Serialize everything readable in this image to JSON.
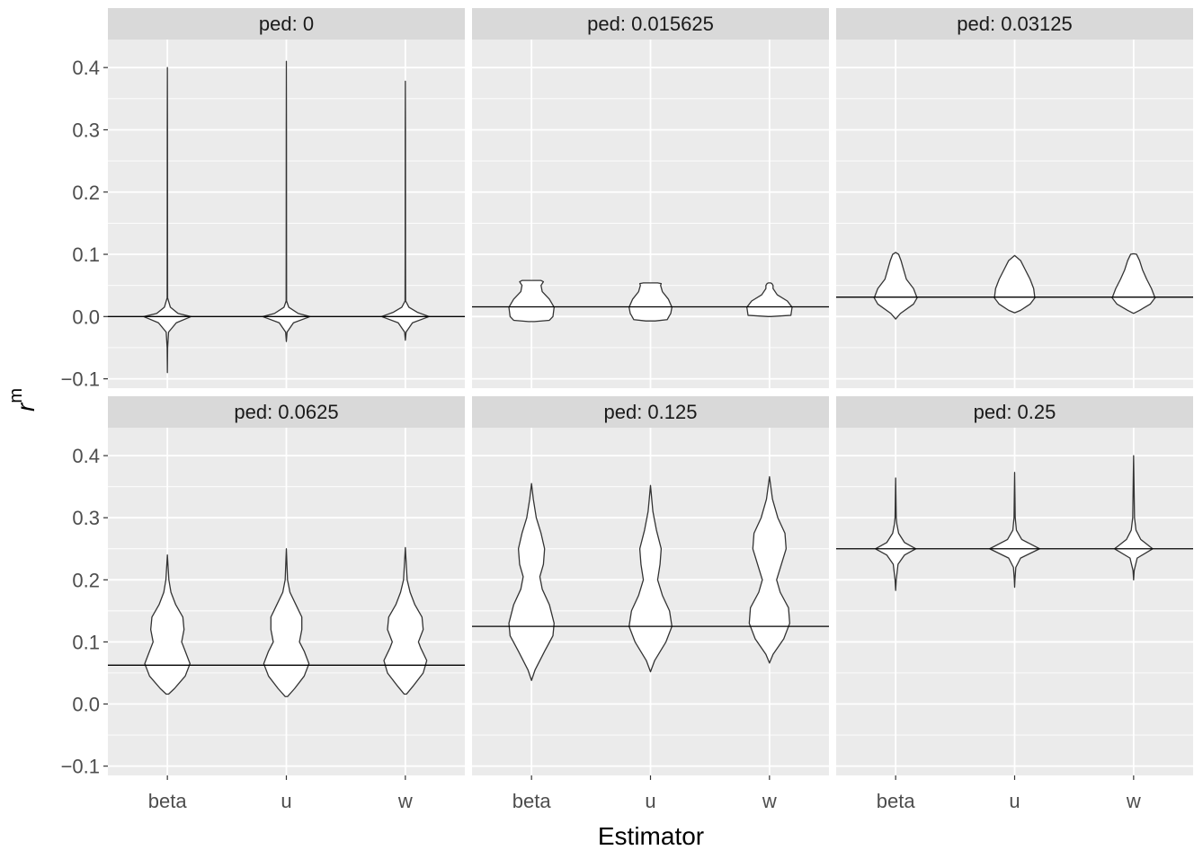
{
  "chart_data": {
    "type": "violin",
    "xlabel": "Estimator",
    "ylabel": "r",
    "ylabel_superscript": "m",
    "categories": [
      "beta",
      "u",
      "w"
    ],
    "ylim": [
      -0.115,
      0.445
    ],
    "yticks": [
      -0.1,
      0.0,
      0.1,
      0.2,
      0.3,
      0.4
    ],
    "ytick_labels": [
      "−0.1",
      "0.0",
      "0.1",
      "0.2",
      "0.3",
      "0.4"
    ],
    "grid": true,
    "facets": [
      {
        "label": "ped: 0",
        "ped": 0,
        "ref_line": 0,
        "violins": [
          {
            "category": "beta",
            "profile": [
              [
                -0.09,
                0
              ],
              [
                -0.05,
                0.004
              ],
              [
                -0.025,
                0.02
              ],
              [
                -0.01,
                0.15
              ],
              [
                0,
                0.4
              ],
              [
                0.005,
                0.18
              ],
              [
                0.015,
                0.05
              ],
              [
                0.03,
                0.004
              ],
              [
                0.1,
                0.003
              ],
              [
                0.3,
                0.002
              ],
              [
                0.4,
                0
              ]
            ]
          },
          {
            "category": "u",
            "profile": [
              [
                -0.04,
                0
              ],
              [
                -0.025,
                0.012
              ],
              [
                -0.01,
                0.12
              ],
              [
                0,
                0.4
              ],
              [
                0.005,
                0.2
              ],
              [
                0.015,
                0.04
              ],
              [
                0.025,
                0.004
              ],
              [
                0.1,
                0.003
              ],
              [
                0.3,
                0.002
              ],
              [
                0.41,
                0
              ]
            ]
          },
          {
            "category": "w",
            "profile": [
              [
                -0.038,
                0
              ],
              [
                -0.025,
                0.012
              ],
              [
                -0.01,
                0.12
              ],
              [
                0,
                0.4
              ],
              [
                0.007,
                0.2
              ],
              [
                0.015,
                0.06
              ],
              [
                0.025,
                0.005
              ],
              [
                0.1,
                0.003
              ],
              [
                0.3,
                0.002
              ],
              [
                0.378,
                0
              ]
            ]
          }
        ]
      },
      {
        "label": "ped: 0.015625",
        "ped": 0.015625,
        "ref_line": 0.015625,
        "violins": [
          {
            "category": "beta",
            "profile": [
              [
                -0.008,
                0.05
              ],
              [
                -0.006,
                0.3
              ],
              [
                0,
                0.36
              ],
              [
                0.015,
                0.38
              ],
              [
                0.028,
                0.3
              ],
              [
                0.04,
                0.18
              ],
              [
                0.05,
                0.16
              ],
              [
                0.056,
                0.2
              ],
              [
                0.058,
                0.16
              ]
            ]
          },
          {
            "category": "u",
            "profile": [
              [
                -0.007,
                0.08
              ],
              [
                -0.005,
                0.28
              ],
              [
                0.005,
                0.34
              ],
              [
                0.015,
                0.36
              ],
              [
                0.028,
                0.3
              ],
              [
                0.04,
                0.2
              ],
              [
                0.05,
                0.17
              ],
              [
                0.053,
                0.18
              ],
              [
                0.054,
                0.12
              ]
            ]
          },
          {
            "category": "w",
            "profile": [
              [
                0,
                0.02
              ],
              [
                0.002,
                0.36
              ],
              [
                0.015,
                0.38
              ],
              [
                0.025,
                0.3
              ],
              [
                0.035,
                0.13
              ],
              [
                0.045,
                0.06
              ],
              [
                0.05,
                0.06
              ],
              [
                0.053,
                0.04
              ],
              [
                0.054,
                0.02
              ]
            ]
          }
        ]
      },
      {
        "label": "ped: 0.03125",
        "ped": 0.03125,
        "ref_line": 0.03125,
        "violins": [
          {
            "category": "beta",
            "profile": [
              [
                -0.004,
                0
              ],
              [
                0.005,
                0.08
              ],
              [
                0.02,
                0.3
              ],
              [
                0.03,
                0.36
              ],
              [
                0.045,
                0.3
              ],
              [
                0.06,
                0.18
              ],
              [
                0.08,
                0.12
              ],
              [
                0.09,
                0.09
              ],
              [
                0.1,
                0.05
              ],
              [
                0.103,
                0
              ]
            ]
          },
          {
            "category": "u",
            "profile": [
              [
                0.006,
                0
              ],
              [
                0.01,
                0.1
              ],
              [
                0.02,
                0.26
              ],
              [
                0.03,
                0.34
              ],
              [
                0.045,
                0.32
              ],
              [
                0.06,
                0.26
              ],
              [
                0.075,
                0.18
              ],
              [
                0.09,
                0.1
              ],
              [
                0.098,
                0
              ]
            ]
          },
          {
            "category": "w",
            "profile": [
              [
                0.005,
                0
              ],
              [
                0.01,
                0.1
              ],
              [
                0.02,
                0.28
              ],
              [
                0.03,
                0.36
              ],
              [
                0.045,
                0.3
              ],
              [
                0.06,
                0.22
              ],
              [
                0.075,
                0.15
              ],
              [
                0.09,
                0.1
              ],
              [
                0.1,
                0.05
              ],
              [
                0.101,
                0
              ]
            ]
          }
        ]
      },
      {
        "label": "ped: 0.0625",
        "ped": 0.0625,
        "ref_line": 0.0625,
        "violins": [
          {
            "category": "beta",
            "profile": [
              [
                0.016,
                0.02
              ],
              [
                0.025,
                0.12
              ],
              [
                0.045,
                0.3
              ],
              [
                0.065,
                0.38
              ],
              [
                0.085,
                0.3
              ],
              [
                0.1,
                0.24
              ],
              [
                0.12,
                0.28
              ],
              [
                0.14,
                0.26
              ],
              [
                0.16,
                0.14
              ],
              [
                0.18,
                0.06
              ],
              [
                0.2,
                0.025
              ],
              [
                0.24,
                0
              ]
            ]
          },
          {
            "category": "u",
            "profile": [
              [
                0.012,
                0.02
              ],
              [
                0.025,
                0.14
              ],
              [
                0.045,
                0.3
              ],
              [
                0.065,
                0.38
              ],
              [
                0.085,
                0.3
              ],
              [
                0.1,
                0.22
              ],
              [
                0.12,
                0.26
              ],
              [
                0.14,
                0.26
              ],
              [
                0.16,
                0.16
              ],
              [
                0.18,
                0.06
              ],
              [
                0.2,
                0.02
              ],
              [
                0.25,
                0
              ]
            ]
          },
          {
            "category": "w",
            "profile": [
              [
                0.016,
                0.02
              ],
              [
                0.03,
                0.14
              ],
              [
                0.05,
                0.3
              ],
              [
                0.07,
                0.36
              ],
              [
                0.09,
                0.26
              ],
              [
                0.1,
                0.22
              ],
              [
                0.12,
                0.3
              ],
              [
                0.14,
                0.28
              ],
              [
                0.16,
                0.16
              ],
              [
                0.18,
                0.08
              ],
              [
                0.2,
                0.03
              ],
              [
                0.252,
                0
              ]
            ]
          }
        ]
      },
      {
        "label": "ped: 0.125",
        "ped": 0.125,
        "ref_line": 0.125,
        "violins": [
          {
            "category": "beta",
            "profile": [
              [
                0.038,
                0
              ],
              [
                0.055,
                0.06
              ],
              [
                0.085,
                0.22
              ],
              [
                0.11,
                0.36
              ],
              [
                0.13,
                0.38
              ],
              [
                0.16,
                0.3
              ],
              [
                0.185,
                0.18
              ],
              [
                0.205,
                0.14
              ],
              [
                0.225,
                0.2
              ],
              [
                0.25,
                0.22
              ],
              [
                0.275,
                0.16
              ],
              [
                0.3,
                0.08
              ],
              [
                0.33,
                0.03
              ],
              [
                0.355,
                0
              ]
            ]
          },
          {
            "category": "u",
            "profile": [
              [
                0.052,
                0
              ],
              [
                0.07,
                0.07
              ],
              [
                0.1,
                0.26
              ],
              [
                0.125,
                0.36
              ],
              [
                0.15,
                0.32
              ],
              [
                0.175,
                0.2
              ],
              [
                0.2,
                0.12
              ],
              [
                0.225,
                0.16
              ],
              [
                0.25,
                0.18
              ],
              [
                0.28,
                0.1
              ],
              [
                0.31,
                0.04
              ],
              [
                0.352,
                0
              ]
            ]
          },
          {
            "category": "w",
            "profile": [
              [
                0.066,
                0
              ],
              [
                0.08,
                0.06
              ],
              [
                0.105,
                0.24
              ],
              [
                0.13,
                0.34
              ],
              [
                0.155,
                0.32
              ],
              [
                0.18,
                0.18
              ],
              [
                0.2,
                0.12
              ],
              [
                0.225,
                0.2
              ],
              [
                0.25,
                0.28
              ],
              [
                0.275,
                0.26
              ],
              [
                0.3,
                0.14
              ],
              [
                0.33,
                0.05
              ],
              [
                0.366,
                0
              ]
            ]
          }
        ]
      },
      {
        "label": "ped: 0.25",
        "ped": 0.25,
        "ref_line": 0.25,
        "violins": [
          {
            "category": "beta",
            "profile": [
              [
                0.183,
                0
              ],
              [
                0.2,
                0.01
              ],
              [
                0.225,
                0.04
              ],
              [
                0.24,
                0.15
              ],
              [
                0.25,
                0.34
              ],
              [
                0.26,
                0.15
              ],
              [
                0.275,
                0.05
              ],
              [
                0.29,
                0.02
              ],
              [
                0.3,
                0.01
              ],
              [
                0.364,
                0
              ]
            ]
          },
          {
            "category": "u",
            "profile": [
              [
                0.188,
                0
              ],
              [
                0.2,
                0.005
              ],
              [
                0.22,
                0.02
              ],
              [
                0.235,
                0.1
              ],
              [
                0.25,
                0.42
              ],
              [
                0.265,
                0.12
              ],
              [
                0.28,
                0.03
              ],
              [
                0.3,
                0.01
              ],
              [
                0.373,
                0
              ]
            ]
          },
          {
            "category": "w",
            "profile": [
              [
                0.2,
                0
              ],
              [
                0.215,
                0.01
              ],
              [
                0.235,
                0.06
              ],
              [
                0.25,
                0.32
              ],
              [
                0.265,
                0.12
              ],
              [
                0.28,
                0.04
              ],
              [
                0.3,
                0.015
              ],
              [
                0.4,
                0
              ]
            ]
          }
        ]
      }
    ]
  }
}
